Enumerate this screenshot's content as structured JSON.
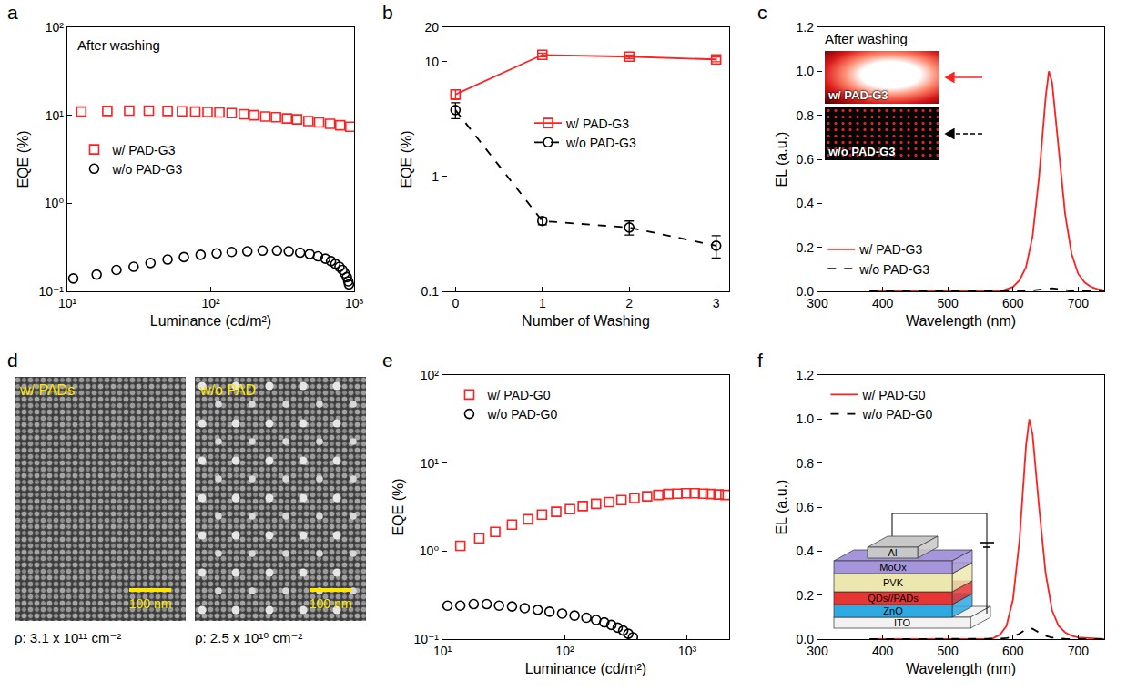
{
  "chart_data": [
    {
      "panel": "a",
      "type": "scatter",
      "log": true,
      "xlabel": "Luminance (cd/m²)",
      "ylabel": "EQE (%)",
      "xlim": [
        10,
        1000
      ],
      "ylim": [
        0.1,
        100
      ],
      "xticks": [
        {
          "value": 10,
          "label": "10¹"
        },
        {
          "value": 100,
          "label": "10²"
        },
        {
          "value": 1000,
          "label": "10³"
        }
      ],
      "yticks": [
        {
          "value": 0.1,
          "label": "10⁻¹"
        },
        {
          "value": 1,
          "label": "10⁰"
        },
        {
          "value": 10,
          "label": "10¹"
        },
        {
          "value": 100,
          "label": "10²"
        }
      ],
      "annotations": [
        "After washing"
      ],
      "legend": "left",
      "series": [
        {
          "name": "w/ PAD-G3",
          "color": "#ff2020",
          "marker": "square",
          "x": [
            12.5,
            19,
            27,
            37,
            50,
            63,
            78,
            95,
            115,
            140,
            170,
            200,
            240,
            285,
            340,
            400,
            480,
            570,
            680,
            800,
            940
          ],
          "values": [
            11.0,
            11.2,
            11.3,
            11.3,
            11.2,
            11.1,
            11.0,
            10.9,
            10.8,
            10.6,
            10.3,
            10.0,
            9.7,
            9.5,
            9.2,
            9.0,
            8.6,
            8.3,
            8.0,
            7.7,
            7.4
          ]
        },
        {
          "name": "w/o PAD-G3",
          "color": "#000000",
          "marker": "circle",
          "x": [
            11,
            16,
            22,
            29,
            38,
            50,
            65,
            85,
            110,
            140,
            180,
            230,
            290,
            350,
            420,
            490,
            560,
            630,
            690,
            740,
            790,
            830,
            860,
            890,
            910,
            920
          ],
          "values": [
            0.14,
            0.155,
            0.175,
            0.19,
            0.21,
            0.23,
            0.245,
            0.26,
            0.27,
            0.28,
            0.285,
            0.29,
            0.29,
            0.285,
            0.275,
            0.265,
            0.25,
            0.235,
            0.22,
            0.205,
            0.19,
            0.175,
            0.16,
            0.145,
            0.13,
            0.12
          ]
        }
      ]
    },
    {
      "panel": "b",
      "type": "line",
      "log": "y",
      "xlabel": "Number of Washing",
      "ylabel": "EQE (%)",
      "xlim": [
        -0.15,
        3.15
      ],
      "ylim": [
        0.1,
        20
      ],
      "xticks": [
        0,
        1,
        2,
        3
      ],
      "yticks": [
        0.1,
        1,
        10,
        20
      ],
      "legend": "center",
      "series": [
        {
          "name": "w/ PAD-G3",
          "color": "#ff2020",
          "marker": "square",
          "line_style": "solid",
          "x": [
            0,
            1,
            2,
            3
          ],
          "values": [
            5.2,
            11.5,
            11.1,
            10.5
          ],
          "errors": [
            0.5,
            0.4,
            0.4,
            0.5
          ]
        },
        {
          "name": "w/o PAD-G3",
          "color": "#000000",
          "marker": "circle",
          "line_style": "dash",
          "x": [
            0,
            1,
            2,
            3
          ],
          "values": [
            3.8,
            0.41,
            0.36,
            0.25
          ],
          "errors": [
            0.6,
            0.03,
            0.05,
            0.055
          ]
        }
      ]
    },
    {
      "panel": "c",
      "type": "line",
      "xlabel": "Wavelength (nm)",
      "ylabel": "EL (a.u.)",
      "xlim": [
        300,
        740
      ],
      "ylim": [
        0,
        1.2
      ],
      "xticks": [
        300,
        400,
        500,
        600,
        700
      ],
      "yticks": [
        {
          "value": 0,
          "label": "0.0"
        },
        0.2,
        0.4,
        0.6,
        0.8,
        {
          "value": 1,
          "label": "1.0"
        },
        1.2
      ],
      "legend": "lower left",
      "inset": {
        "title": "After washing",
        "images": [
          "w/ PAD-G3",
          "w/o PAD-G3"
        ]
      },
      "series": [
        {
          "name": "w/ PAD-G3",
          "color": "#ff2020",
          "line_style": "solid",
          "x": [
            380,
            400,
            420,
            440,
            460,
            480,
            500,
            520,
            540,
            560,
            580,
            590,
            600,
            610,
            620,
            630,
            640,
            650,
            655,
            660,
            670,
            680,
            690,
            700,
            710,
            720,
            730,
            740
          ],
          "values": [
            0,
            0,
            0,
            0,
            0,
            0,
            0,
            0,
            0,
            0,
            0,
            0.01,
            0.02,
            0.05,
            0.11,
            0.25,
            0.52,
            0.88,
            1.0,
            0.95,
            0.65,
            0.35,
            0.17,
            0.08,
            0.04,
            0.02,
            0.01,
            0.005
          ]
        },
        {
          "name": "w/o PAD-G3",
          "color": "#000000",
          "line_style": "dash",
          "x": [
            380,
            400,
            420,
            440,
            460,
            480,
            500,
            520,
            540,
            560,
            580,
            590,
            600,
            610,
            620,
            630,
            640,
            650,
            655,
            660,
            670,
            680,
            690,
            700,
            710,
            720,
            730,
            740
          ],
          "values": [
            0,
            0,
            0,
            0,
            0,
            0,
            0,
            0,
            0,
            0,
            0,
            0,
            0,
            0.001,
            0.002,
            0.004,
            0.008,
            0.013,
            0.015,
            0.014,
            0.01,
            0.005,
            0.003,
            0.001,
            0,
            0,
            0,
            0
          ]
        }
      ]
    },
    {
      "panel": "e",
      "type": "scatter",
      "log": true,
      "xlabel": "Luminance (cd/m²)",
      "ylabel": "EQE (%)",
      "xlim": [
        10,
        2200
      ],
      "ylim": [
        0.1,
        100
      ],
      "xticks": [
        {
          "value": 10,
          "label": "10¹"
        },
        {
          "value": 100,
          "label": "10²"
        },
        {
          "value": 1000,
          "label": "10³"
        }
      ],
      "yticks": [
        {
          "value": 0.1,
          "label": "10⁻¹"
        },
        {
          "value": 1,
          "label": "10⁰"
        },
        {
          "value": 10,
          "label": "10¹"
        },
        {
          "value": 100,
          "label": "10²"
        }
      ],
      "legend": "upper left",
      "series": [
        {
          "name": "w/ PAD-G0",
          "color": "#ff2020",
          "marker": "square",
          "x": [
            14,
            20,
            27,
            37,
            50,
            65,
            85,
            110,
            140,
            180,
            230,
            290,
            370,
            470,
            580,
            700,
            830,
            980,
            1150,
            1350,
            1550,
            1800,
            2050
          ],
          "values": [
            1.15,
            1.4,
            1.65,
            2.0,
            2.3,
            2.6,
            2.8,
            3.0,
            3.25,
            3.45,
            3.6,
            3.8,
            4.0,
            4.2,
            4.35,
            4.45,
            4.5,
            4.55,
            4.55,
            4.5,
            4.45,
            4.4,
            4.35
          ]
        },
        {
          "name": "w/o PAD-G0",
          "color": "#000000",
          "marker": "circle",
          "x": [
            11,
            14,
            18,
            23,
            29,
            37,
            47,
            60,
            75,
            95,
            120,
            150,
            180,
            210,
            240,
            270,
            300,
            330,
            360
          ],
          "values": [
            0.24,
            0.24,
            0.25,
            0.25,
            0.24,
            0.235,
            0.225,
            0.215,
            0.205,
            0.195,
            0.185,
            0.175,
            0.165,
            0.155,
            0.145,
            0.135,
            0.125,
            0.115,
            0.105
          ]
        }
      ]
    },
    {
      "panel": "f",
      "type": "line",
      "xlabel": "Wavelength (nm)",
      "ylabel": "EL (a.u.)",
      "xlim": [
        300,
        740
      ],
      "ylim": [
        0,
        1.2
      ],
      "xticks": [
        300,
        400,
        500,
        600,
        700
      ],
      "yticks": [
        {
          "value": 0,
          "label": "0.0"
        },
        0.2,
        0.4,
        0.6,
        0.8,
        {
          "value": 1,
          "label": "1.0"
        },
        1.2
      ],
      "legend": "upper left",
      "inset_diagram": {
        "layers": [
          "Al",
          "MoOx",
          "PVK",
          "QDs//PADs",
          "ZnO",
          "ITO"
        ]
      },
      "series": [
        {
          "name": "w/ PAD-G0",
          "color": "#ff2020",
          "line_style": "solid",
          "x": [
            380,
            400,
            420,
            440,
            460,
            480,
            500,
            520,
            540,
            560,
            570,
            580,
            590,
            600,
            610,
            620,
            625,
            630,
            640,
            650,
            660,
            670,
            680,
            690,
            700,
            720,
            740
          ],
          "values": [
            0,
            0,
            0,
            0,
            0,
            0,
            0,
            0,
            0,
            0,
            0.005,
            0.02,
            0.06,
            0.18,
            0.45,
            0.88,
            1.0,
            0.93,
            0.6,
            0.3,
            0.13,
            0.06,
            0.03,
            0.015,
            0.008,
            0.003,
            0
          ]
        },
        {
          "name": "w/o PAD-G0",
          "color": "#000000",
          "line_style": "dash",
          "x": [
            380,
            400,
            420,
            440,
            460,
            480,
            500,
            520,
            540,
            560,
            570,
            580,
            590,
            600,
            610,
            620,
            625,
            630,
            640,
            650,
            660,
            670,
            680,
            690,
            700,
            720,
            740
          ],
          "values": [
            0,
            0,
            0,
            0,
            0,
            0,
            0,
            0,
            0,
            0,
            0,
            0.002,
            0.005,
            0.01,
            0.025,
            0.045,
            0.05,
            0.047,
            0.03,
            0.015,
            0.007,
            0.003,
            0.001,
            0,
            0,
            0,
            0
          ]
        }
      ]
    }
  ],
  "panel_d": {
    "panel": "d",
    "images": [
      {
        "label": "w/ PADs",
        "scale_bar": "100 nm",
        "density": "ρ: 3.1 x 10¹¹ cm⁻²"
      },
      {
        "label": "w/o PAD",
        "scale_bar": "100 nm",
        "density": "ρ: 2.5 x 10¹⁰ cm⁻²"
      }
    ]
  }
}
